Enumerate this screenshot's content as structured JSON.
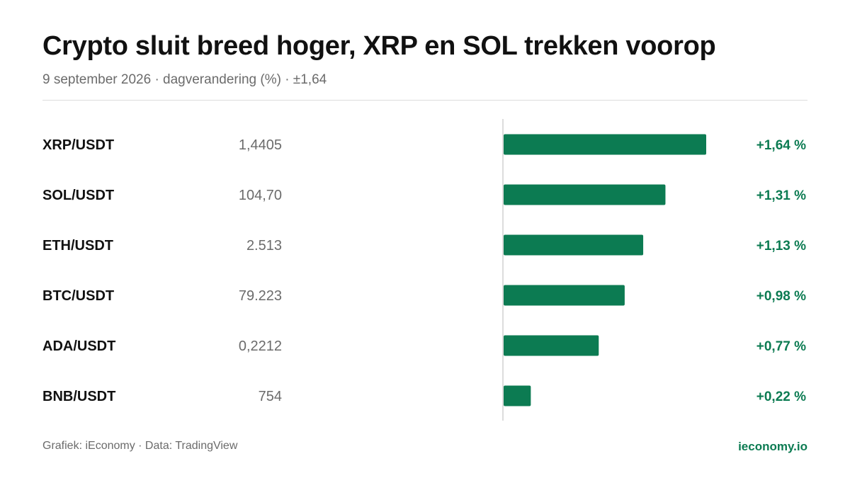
{
  "header": {
    "title": "Crypto sluit breed hoger, XRP en SOL trekken voorop",
    "subtitle": "9 september 2026 · dagverandering (%) · ±1,64"
  },
  "footer": {
    "credit": "Grafiek: iEconomy · Data: TradingView",
    "brand": "ieconomy.io"
  },
  "colors": {
    "bar": "#0c7b52",
    "positive_text": "#0c7b52",
    "pair_text": "#111111",
    "price_text": "#6b6b6b",
    "axis": "#d0d0d0"
  },
  "chart_data": {
    "type": "bar",
    "orientation": "horizontal",
    "categories": [
      "XRP/USDT",
      "SOL/USDT",
      "ETH/USDT",
      "BTC/USDT",
      "ADA/USDT",
      "BNB/USDT"
    ],
    "prices": [
      "1,4405",
      "104,70",
      "2.513",
      "79.223",
      "0,2212",
      "754"
    ],
    "values": [
      1.64,
      1.31,
      1.13,
      0.98,
      0.77,
      0.22
    ],
    "value_labels": [
      "+1,64 %",
      "+1,31 %",
      "+1,13 %",
      "+0,98 %",
      "+0,77 %",
      "+0,22 %"
    ],
    "xlim": [
      -1.64,
      1.64
    ],
    "grid": false
  }
}
